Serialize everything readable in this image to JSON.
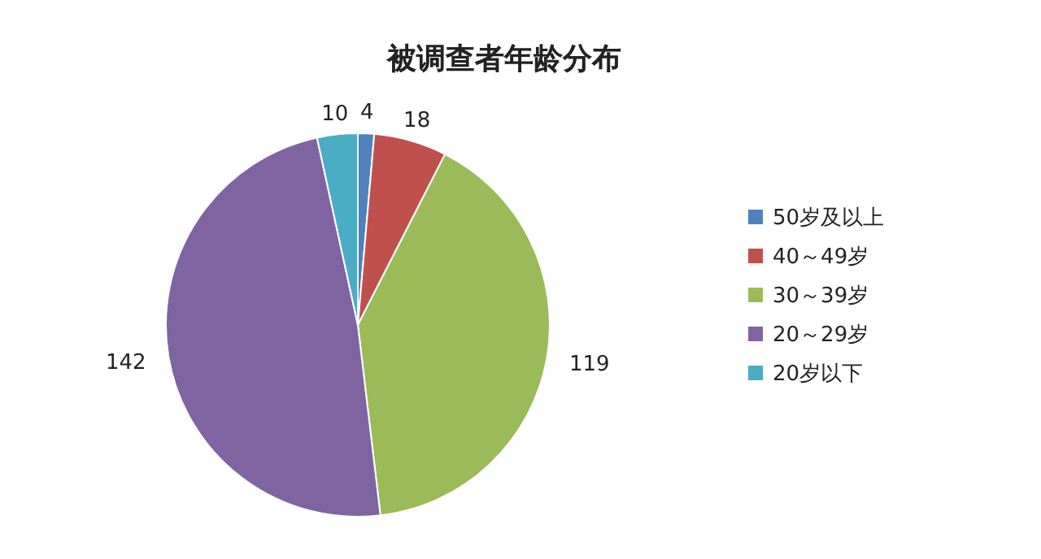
{
  "chart_data": {
    "type": "pie",
    "title": "被调查者年龄分布",
    "categories": [
      "50岁及以上",
      "40～49岁",
      "30～39岁",
      "20～29岁",
      "20岁以下"
    ],
    "values": [
      4,
      18,
      119,
      142,
      10
    ],
    "colors": [
      "#4f81bd",
      "#c0504d",
      "#9bbb59",
      "#8064a2",
      "#4bacc6"
    ],
    "data_labels": true,
    "legend": "right"
  }
}
